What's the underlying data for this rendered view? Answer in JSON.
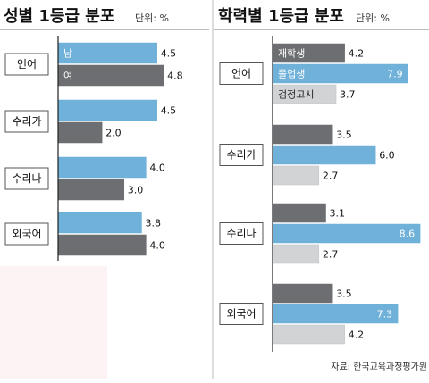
{
  "chart_data": [
    {
      "type": "bar",
      "orientation": "horizontal",
      "title": "성별 1등급 분포",
      "unit": "단위: %",
      "categories": [
        "언어",
        "수리가",
        "수리나",
        "외국어"
      ],
      "series": [
        {
          "name": "남",
          "color": "#6fb1d8",
          "values": [
            4.5,
            4.5,
            4.0,
            3.8
          ]
        },
        {
          "name": "여",
          "color": "#6d6e71",
          "values": [
            4.8,
            2.0,
            3.0,
            4.0
          ]
        }
      ],
      "xlim": [
        0,
        5.0
      ],
      "grid": false,
      "legend": "in-bar"
    },
    {
      "type": "bar",
      "orientation": "horizontal",
      "title": "학력별 1등급 분포",
      "unit": "단위: %",
      "categories": [
        "언어",
        "수리가",
        "수리나",
        "외국어"
      ],
      "series": [
        {
          "name": "재학생",
          "color": "#6d6e71",
          "values": [
            4.2,
            3.5,
            3.1,
            3.5
          ]
        },
        {
          "name": "졸업생",
          "color": "#6fb1d8",
          "values": [
            7.9,
            6.0,
            8.6,
            7.3
          ]
        },
        {
          "name": "검정고시",
          "color": "#d2d3d5",
          "values": [
            3.7,
            2.7,
            2.7,
            4.2
          ]
        }
      ],
      "xlim": [
        0,
        9.5
      ],
      "grid": false,
      "legend": "in-bar",
      "source": "자료: 한국교육과정평가원"
    }
  ]
}
